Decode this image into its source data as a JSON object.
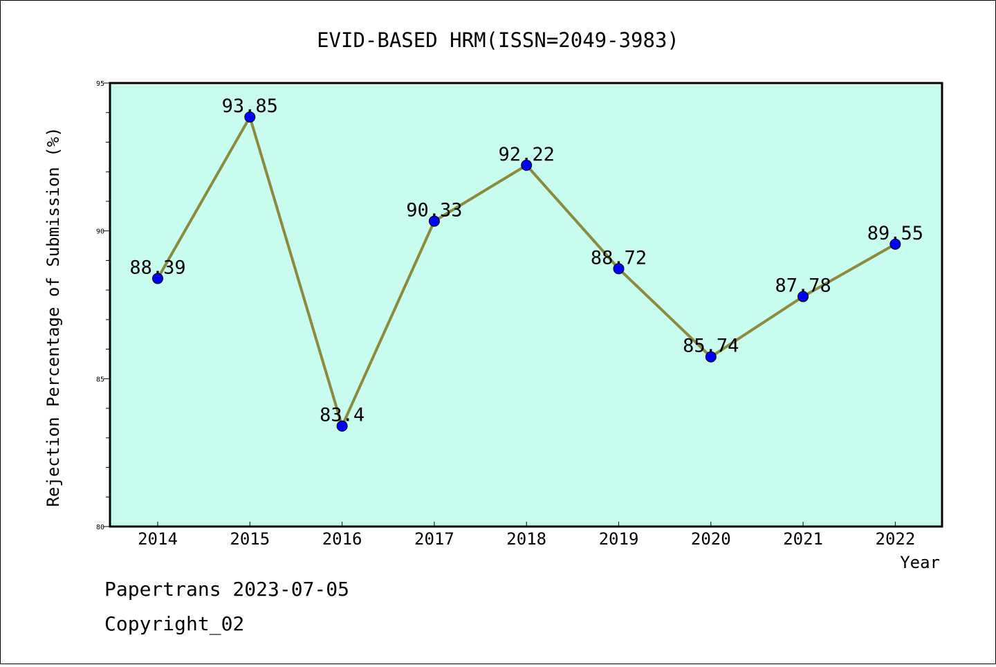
{
  "chart_data": {
    "type": "line",
    "title": "EVID-BASED HRM(ISSN=2049-3983)",
    "xlabel": "Year",
    "ylabel": "Rejection Percentage of Submission (%)",
    "categories": [
      "2014",
      "2015",
      "2016",
      "2017",
      "2018",
      "2019",
      "2020",
      "2021",
      "2022"
    ],
    "values": [
      88.39,
      93.85,
      83.4,
      90.33,
      92.22,
      88.72,
      85.74,
      87.78,
      89.55
    ],
    "data_labels": [
      "88.39",
      "93.85",
      "83.4",
      "90.33",
      "92.22",
      "88.72",
      "85.74",
      "87.78",
      "89.55"
    ],
    "ylim": [
      80,
      95
    ],
    "yticks": [
      "80",
      "85",
      "90",
      "95"
    ],
    "grid": false,
    "colors": {
      "plot_background": "#c8fcee",
      "line": "#8b8b3c",
      "marker": "#0000ff"
    }
  },
  "footer": {
    "line1": "Papertrans 2023-07-05",
    "line2": "Copyright_02"
  }
}
